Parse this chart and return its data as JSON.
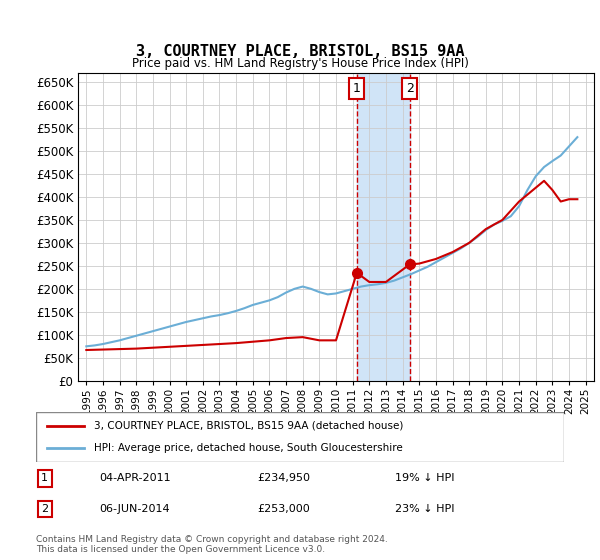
{
  "title": "3, COURTNEY PLACE, BRISTOL, BS15 9AA",
  "subtitle": "Price paid vs. HM Land Registry's House Price Index (HPI)",
  "legend_line1": "3, COURTNEY PLACE, BRISTOL, BS15 9AA (detached house)",
  "legend_line2": "HPI: Average price, detached house, South Gloucestershire",
  "footnote": "Contains HM Land Registry data © Crown copyright and database right 2024.\nThis data is licensed under the Open Government Licence v3.0.",
  "sale1_label": "1",
  "sale1_date": "04-APR-2011",
  "sale1_price": "£234,950",
  "sale1_hpi": "19% ↓ HPI",
  "sale2_label": "2",
  "sale2_date": "06-JUN-2014",
  "sale2_price": "£253,000",
  "sale2_hpi": "23% ↓ HPI",
  "sale1_x": 2011.25,
  "sale1_y": 234950,
  "sale2_x": 2014.42,
  "sale2_y": 253000,
  "ylim": [
    0,
    670000
  ],
  "xlim": [
    1994.5,
    2025.5
  ],
  "yticks": [
    0,
    50000,
    100000,
    150000,
    200000,
    250000,
    300000,
    350000,
    400000,
    450000,
    500000,
    550000,
    600000,
    650000
  ],
  "ytick_labels": [
    "£0",
    "£50K",
    "£100K",
    "£150K",
    "£200K",
    "£250K",
    "£300K",
    "£350K",
    "£400K",
    "£450K",
    "£500K",
    "£550K",
    "£600K",
    "£650K"
  ],
  "xticks": [
    1995,
    1996,
    1997,
    1998,
    1999,
    2000,
    2001,
    2002,
    2003,
    2004,
    2005,
    2006,
    2007,
    2008,
    2009,
    2010,
    2011,
    2012,
    2013,
    2014,
    2015,
    2016,
    2017,
    2018,
    2019,
    2020,
    2021,
    2022,
    2023,
    2024,
    2025
  ],
  "hpi_color": "#6baed6",
  "sale_color": "#cc0000",
  "highlight_color": "#d0e4f7",
  "sale1_vline_x": 2011.25,
  "sale2_vline_x": 2014.42,
  "hpi_x": [
    1995,
    1995.5,
    1996,
    1996.5,
    1997,
    1997.5,
    1998,
    1998.5,
    1999,
    1999.5,
    2000,
    2000.5,
    2001,
    2001.5,
    2002,
    2002.5,
    2003,
    2003.5,
    2004,
    2004.5,
    2005,
    2005.5,
    2006,
    2006.5,
    2007,
    2007.5,
    2008,
    2008.5,
    2009,
    2009.5,
    2010,
    2010.5,
    2011,
    2011.5,
    2012,
    2012.5,
    2013,
    2013.5,
    2014,
    2014.5,
    2015,
    2015.5,
    2016,
    2016.5,
    2017,
    2017.5,
    2018,
    2018.5,
    2019,
    2019.5,
    2020,
    2020.5,
    2021,
    2021.5,
    2022,
    2022.5,
    2023,
    2023.5,
    2024,
    2024.5
  ],
  "hpi_y": [
    75000,
    77000,
    80000,
    84000,
    88000,
    93000,
    98000,
    103000,
    108000,
    113000,
    118000,
    123000,
    128000,
    132000,
    136000,
    140000,
    143000,
    147000,
    152000,
    158000,
    165000,
    170000,
    175000,
    182000,
    192000,
    200000,
    205000,
    200000,
    193000,
    188000,
    190000,
    195000,
    200000,
    205000,
    208000,
    210000,
    213000,
    218000,
    225000,
    232000,
    240000,
    248000,
    258000,
    268000,
    278000,
    288000,
    300000,
    313000,
    328000,
    340000,
    348000,
    358000,
    380000,
    415000,
    445000,
    465000,
    478000,
    490000,
    510000,
    530000
  ],
  "sale_x": [
    1995,
    1996,
    1997,
    1998,
    1999,
    2000,
    2001,
    2002,
    2003,
    2004,
    2005,
    2006,
    2007,
    2008,
    2009,
    2010,
    2011.25,
    2012,
    2013,
    2014.42,
    2015,
    2016,
    2017,
    2018,
    2019,
    2020,
    2021,
    2022,
    2022.5,
    2023,
    2023.5,
    2024,
    2024.5
  ],
  "sale_y": [
    67000,
    68000,
    69000,
    70000,
    72000,
    74000,
    76000,
    78000,
    80000,
    82000,
    85000,
    88000,
    93000,
    95000,
    88000,
    88000,
    234950,
    215000,
    215000,
    253000,
    255000,
    265000,
    280000,
    300000,
    330000,
    350000,
    390000,
    420000,
    435000,
    415000,
    390000,
    395000,
    395000
  ]
}
